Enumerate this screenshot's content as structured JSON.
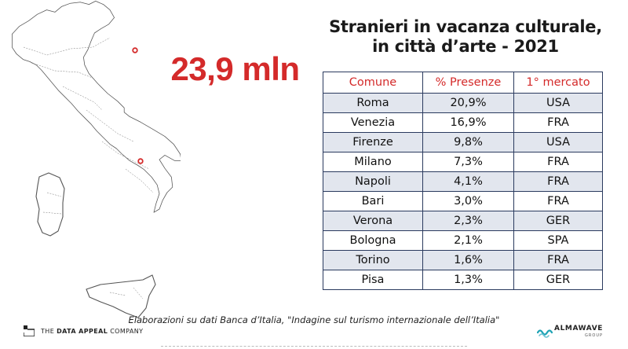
{
  "headline_value": "23,9 mln",
  "title": {
    "line1": "Stranieri in vacanza culturale,",
    "line2": "in città d’arte - 2021"
  },
  "table": {
    "headers": [
      "Comune",
      "% Presenze",
      "1° mercato"
    ],
    "rows": [
      [
        "Roma",
        "20,9%",
        "USA"
      ],
      [
        "Venezia",
        "16,9%",
        "FRA"
      ],
      [
        "Firenze",
        "9,8%",
        "USA"
      ],
      [
        "Milano",
        "7,3%",
        "FRA"
      ],
      [
        "Napoli",
        "4,1%",
        "FRA"
      ],
      [
        "Bari",
        "3,0%",
        "FRA"
      ],
      [
        "Verona",
        "2,3%",
        "GER"
      ],
      [
        "Bologna",
        "2,1%",
        "SPA"
      ],
      [
        "Torino",
        "1,6%",
        "FRA"
      ],
      [
        "Pisa",
        "1,3%",
        "GER"
      ]
    ]
  },
  "caption": "Elaborazioni su dati Banca d’Italia, \"Indagine sul turismo internazionale dell’Italia\"",
  "logos": {
    "left_prefix": "THE",
    "left_bold": "DATA APPEAL",
    "left_suffix": "COMPANY",
    "right_name": "ALMAWAVE",
    "right_sub": "GROUP"
  },
  "colors": {
    "accent_red": "#d42a2a",
    "table_border": "#2a3a5e",
    "row_stripe": "#e2e6ee",
    "map_stroke": "#555555",
    "almawave_teal": "#1fa3b5"
  }
}
